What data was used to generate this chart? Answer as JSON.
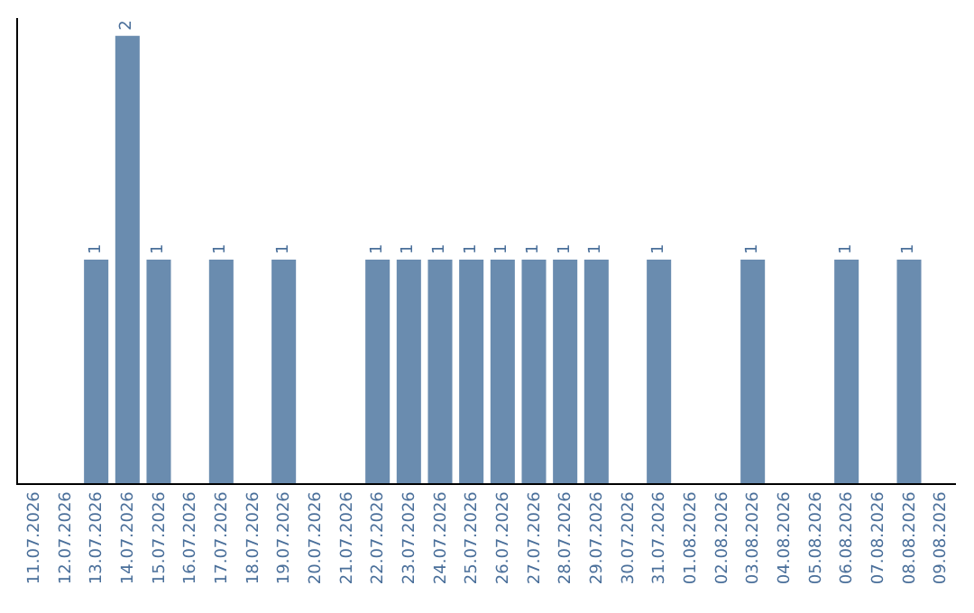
{
  "chart_data": {
    "type": "bar",
    "categories": [
      "11.07.2026",
      "12.07.2026",
      "13.07.2026",
      "14.07.2026",
      "15.07.2026",
      "16.07.2026",
      "17.07.2026",
      "18.07.2026",
      "19.07.2026",
      "20.07.2026",
      "21.07.2026",
      "22.07.2026",
      "23.07.2026",
      "24.07.2026",
      "25.07.2026",
      "26.07.2026",
      "27.07.2026",
      "28.07.2026",
      "29.07.2026",
      "30.07.2026",
      "31.07.2026",
      "01.08.2026",
      "02.08.2026",
      "03.08.2026",
      "04.08.2026",
      "05.08.2026",
      "06.08.2026",
      "07.08.2026",
      "08.08.2026",
      "09.08.2026"
    ],
    "values": [
      0,
      0,
      1,
      2,
      1,
      0,
      1,
      0,
      1,
      0,
      0,
      1,
      1,
      1,
      1,
      1,
      1,
      1,
      1,
      0,
      1,
      0,
      0,
      1,
      0,
      0,
      1,
      0,
      1,
      0
    ],
    "value_labels": [
      null,
      null,
      "1",
      "2",
      "1",
      null,
      "1",
      null,
      "1",
      null,
      null,
      "1",
      "1",
      "1",
      "1",
      "1",
      "1",
      "1",
      "1",
      null,
      "1",
      null,
      null,
      "1",
      null,
      null,
      "1",
      null,
      "1",
      null
    ],
    "color": "#6a8caf",
    "ylim": [
      0,
      2.08
    ],
    "tick_labels": "x"
  }
}
